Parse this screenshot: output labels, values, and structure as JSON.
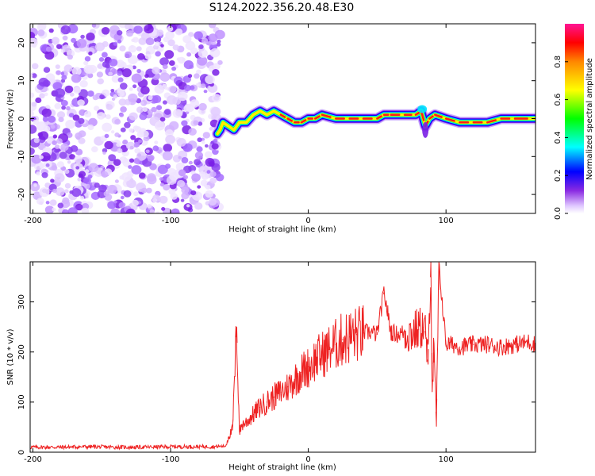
{
  "title": "S124.2022.356.20.48.E30",
  "chart_data": [
    {
      "type": "heatmap",
      "xlabel": "Height of straight line (km)",
      "ylabel": "Frequency (Hz)",
      "xlim": [
        -202,
        165
      ],
      "ylim": [
        -25,
        25
      ],
      "x_ticks": [
        -200,
        -100,
        0,
        100
      ],
      "y_ticks": [
        -20,
        -10,
        0,
        10,
        20
      ],
      "colorbar": {
        "label": "Normalized spectral amplitude",
        "range": [
          0,
          1
        ],
        "ticks": [
          0.0,
          0.2,
          0.4,
          0.6,
          0.8
        ]
      },
      "noise_region_x": [
        -202,
        -67
      ],
      "signal_track": {
        "x": [
          -66,
          -64,
          -62,
          -58,
          -54,
          -50,
          -45,
          -40,
          -35,
          -30,
          -25,
          -20,
          -15,
          -10,
          -5,
          0,
          5,
          10,
          20,
          30,
          40,
          50,
          55,
          60,
          70,
          78,
          82,
          85,
          88,
          92,
          100,
          110,
          120,
          130,
          140,
          150,
          165
        ],
        "freq": [
          -4,
          -3,
          -1,
          -2,
          -3,
          -1,
          -1,
          1,
          2,
          1,
          2,
          1,
          0,
          -1,
          -1,
          0,
          0,
          1,
          0,
          0,
          0,
          0,
          1,
          1,
          1,
          1,
          2,
          -2,
          0,
          1,
          0,
          -1,
          -1,
          -1,
          0,
          0,
          0
        ]
      },
      "signal_amplitude": "high (~0.9) along track from x=-20 to x=165"
    },
    {
      "type": "line",
      "xlabel": "Height of straight line (km)",
      "ylabel": "SNR (10 * v/v)",
      "xlim": [
        -202,
        165
      ],
      "ylim": [
        0,
        380
      ],
      "x_ticks": [
        -200,
        -100,
        0,
        100
      ],
      "y_ticks": [
        0,
        100,
        200,
        300
      ],
      "line_color": "#ee2222",
      "series": [
        {
          "x": [
            -202,
            -180,
            -160,
            -140,
            -120,
            -100,
            -80,
            -70,
            -60,
            -58,
            -55,
            -52,
            -50,
            -48,
            -45,
            -40,
            -35,
            -30,
            -25,
            -20,
            -15,
            -10,
            -5,
            0,
            5,
            10,
            15,
            20,
            25,
            30,
            35,
            40,
            45,
            50,
            55,
            60,
            65,
            70,
            75,
            80,
            83,
            85,
            87,
            89,
            90,
            91,
            93,
            95,
            100,
            105,
            110,
            120,
            130,
            140,
            150,
            160,
            165
          ],
          "values": [
            10,
            10,
            11,
            10,
            10,
            11,
            11,
            11,
            12,
            30,
            45,
            250,
            40,
            55,
            60,
            75,
            90,
            100,
            110,
            120,
            130,
            145,
            160,
            170,
            185,
            195,
            205,
            215,
            225,
            230,
            235,
            238,
            240,
            235,
            320,
            240,
            235,
            240,
            238,
            245,
            250,
            240,
            175,
            380,
            120,
            200,
            60,
            370,
            215,
            215,
            210,
            215,
            215,
            210,
            215,
            220,
            215
          ]
        }
      ]
    }
  ]
}
